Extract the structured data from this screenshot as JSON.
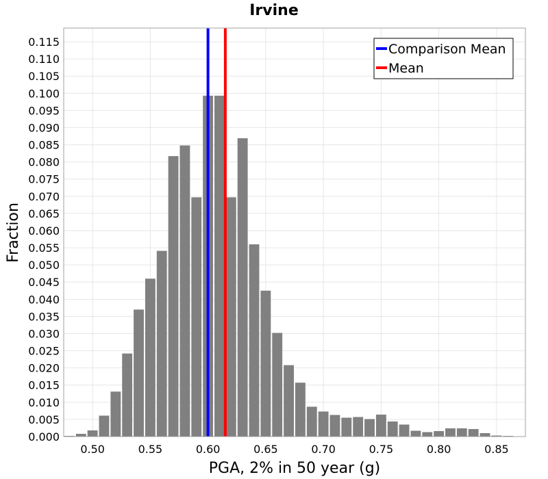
{
  "chart_data": {
    "type": "bar",
    "title": "Irvine",
    "xlabel": "PGA, 2% in 50 year (g)",
    "ylabel": "Fraction",
    "xlim": [
      0.475,
      0.875
    ],
    "ylim": [
      0,
      0.119
    ],
    "xticks": [
      "0.50",
      "0.55",
      "0.60",
      "0.65",
      "0.70",
      "0.75",
      "0.80",
      "0.85"
    ],
    "yticks": [
      "0.000",
      "0.005",
      "0.010",
      "0.015",
      "0.020",
      "0.025",
      "0.030",
      "0.035",
      "0.040",
      "0.045",
      "0.050",
      "0.055",
      "0.060",
      "0.065",
      "0.070",
      "0.075",
      "0.080",
      "0.085",
      "0.090",
      "0.095",
      "0.100",
      "0.105",
      "0.110",
      "0.115"
    ],
    "grid": true,
    "bar_color": "#808080",
    "bin_width": 0.01,
    "bins": [
      {
        "x": 0.48,
        "value": 0.0002
      },
      {
        "x": 0.49,
        "value": 0.0008
      },
      {
        "x": 0.5,
        "value": 0.0018
      },
      {
        "x": 0.51,
        "value": 0.0061
      },
      {
        "x": 0.52,
        "value": 0.0131
      },
      {
        "x": 0.53,
        "value": 0.0242
      },
      {
        "x": 0.54,
        "value": 0.037
      },
      {
        "x": 0.55,
        "value": 0.046
      },
      {
        "x": 0.56,
        "value": 0.0541
      },
      {
        "x": 0.57,
        "value": 0.0817
      },
      {
        "x": 0.58,
        "value": 0.0848
      },
      {
        "x": 0.59,
        "value": 0.0697
      },
      {
        "x": 0.6,
        "value": 0.0993
      },
      {
        "x": 0.61,
        "value": 0.0993
      },
      {
        "x": 0.62,
        "value": 0.0697
      },
      {
        "x": 0.63,
        "value": 0.0869
      },
      {
        "x": 0.64,
        "value": 0.056
      },
      {
        "x": 0.65,
        "value": 0.0425
      },
      {
        "x": 0.66,
        "value": 0.0302
      },
      {
        "x": 0.67,
        "value": 0.0208
      },
      {
        "x": 0.68,
        "value": 0.0157
      },
      {
        "x": 0.69,
        "value": 0.0087
      },
      {
        "x": 0.7,
        "value": 0.0073
      },
      {
        "x": 0.71,
        "value": 0.0063
      },
      {
        "x": 0.72,
        "value": 0.0055
      },
      {
        "x": 0.73,
        "value": 0.0057
      },
      {
        "x": 0.74,
        "value": 0.0051
      },
      {
        "x": 0.75,
        "value": 0.0064
      },
      {
        "x": 0.76,
        "value": 0.0044
      },
      {
        "x": 0.77,
        "value": 0.0035
      },
      {
        "x": 0.78,
        "value": 0.0017
      },
      {
        "x": 0.79,
        "value": 0.0013
      },
      {
        "x": 0.8,
        "value": 0.0016
      },
      {
        "x": 0.81,
        "value": 0.0024
      },
      {
        "x": 0.82,
        "value": 0.0024
      },
      {
        "x": 0.83,
        "value": 0.0022
      },
      {
        "x": 0.84,
        "value": 0.001
      },
      {
        "x": 0.85,
        "value": 0.0003
      },
      {
        "x": 0.86,
        "value": 0.0002
      }
    ],
    "lines": [
      {
        "name": "Comparison Mean",
        "x": 0.6,
        "color": "#0000ff"
      },
      {
        "name": "Mean",
        "x": 0.615,
        "color": "#ff0000"
      }
    ],
    "legend": {
      "position": "top-right",
      "entries": [
        "Comparison Mean",
        "Mean"
      ]
    }
  }
}
